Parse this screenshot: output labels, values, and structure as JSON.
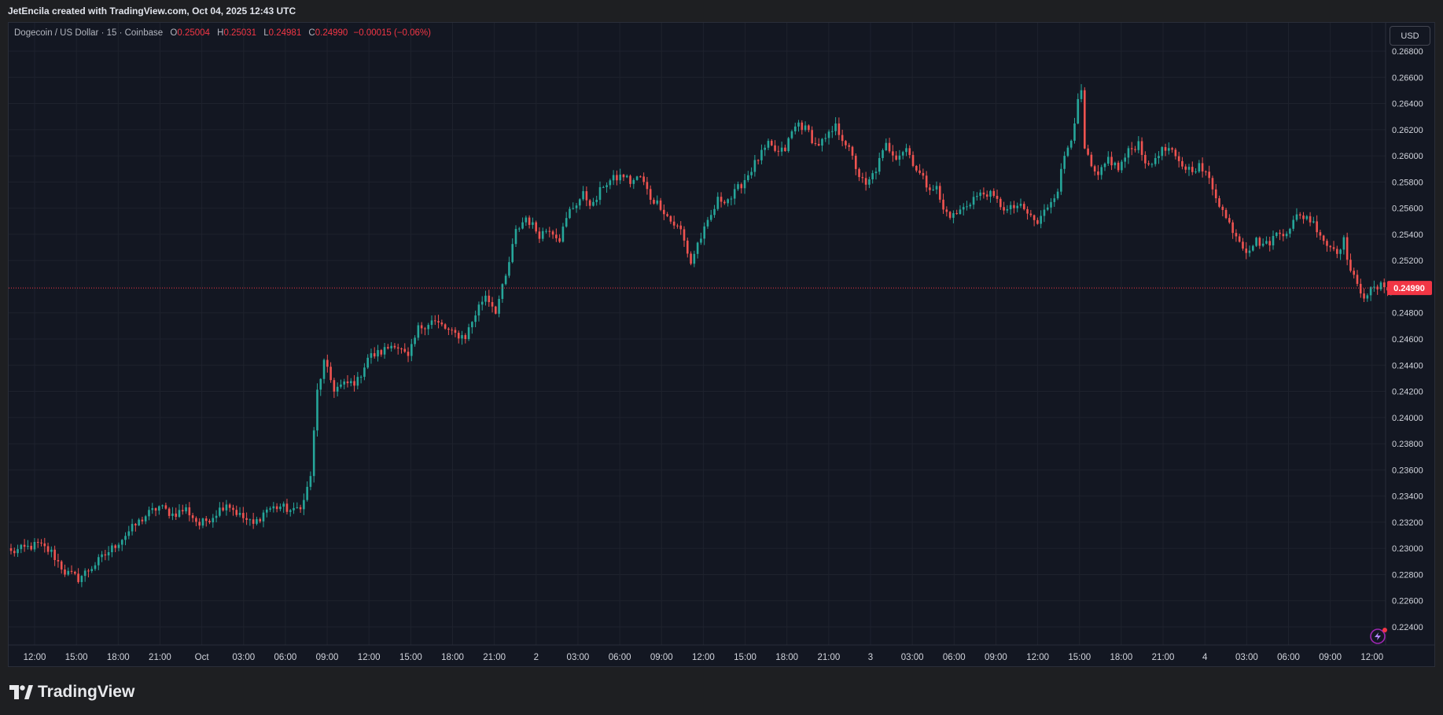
{
  "header": {
    "attribution": "JetEncila created with TradingView.com, Oct 04, 2025 12:43 UTC"
  },
  "legend": {
    "symbol": "Dogecoin / US Dollar · 15 · Coinbase",
    "o_label": "O",
    "o_value": "0.25004",
    "h_label": "H",
    "h_value": "0.25031",
    "l_label": "L",
    "l_value": "0.24981",
    "c_label": "C",
    "c_value": "0.24990",
    "change": "−0.00015 (−0.06%)"
  },
  "currency_button": "USD",
  "brand": {
    "name": "TradingView"
  },
  "colors": {
    "background": "#131722",
    "grid": "#1e222d",
    "up": "#26a69a",
    "down": "#ef5350",
    "axis_text": "#d1d4dc",
    "last_price": "#f23645"
  },
  "chart_data": {
    "type": "candlestick",
    "symbol": "DOGE/USD",
    "interval": "15",
    "y_ticks": [
      "0.26800",
      "0.26600",
      "0.26400",
      "0.26200",
      "0.26000",
      "0.25800",
      "0.25600",
      "0.25400",
      "0.25200",
      "0.24800",
      "0.24600",
      "0.24400",
      "0.24200",
      "0.24000",
      "0.23800",
      "0.23600",
      "0.23400",
      "0.23200",
      "0.23000",
      "0.22800",
      "0.22600",
      "0.22400"
    ],
    "ylim": [
      0.223,
      0.269
    ],
    "x_ticks": [
      "12:00",
      "15:00",
      "18:00",
      "21:00",
      "Oct",
      "03:00",
      "06:00",
      "09:00",
      "12:00",
      "15:00",
      "18:00",
      "21:00",
      "2",
      "03:00",
      "06:00",
      "09:00",
      "12:00",
      "15:00",
      "18:00",
      "21:00",
      "3",
      "03:00",
      "06:00",
      "09:00",
      "12:00",
      "15:00",
      "18:00",
      "21:00",
      "4",
      "03:00",
      "06:00",
      "09:00",
      "12:00"
    ],
    "last_price": 0.2499,
    "last_price_label": "0.24990",
    "anchors": [
      [
        0,
        0.2297
      ],
      [
        8,
        0.2303
      ],
      [
        12,
        0.2297
      ],
      [
        16,
        0.2282
      ],
      [
        20,
        0.2277
      ],
      [
        25,
        0.2288
      ],
      [
        30,
        0.23
      ],
      [
        35,
        0.2313
      ],
      [
        40,
        0.2325
      ],
      [
        44,
        0.2332
      ],
      [
        48,
        0.2326
      ],
      [
        52,
        0.233
      ],
      [
        56,
        0.2318
      ],
      [
        60,
        0.2325
      ],
      [
        64,
        0.2335
      ],
      [
        68,
        0.2325
      ],
      [
        72,
        0.2318
      ],
      [
        76,
        0.233
      ],
      [
        80,
        0.2332
      ],
      [
        84,
        0.2328
      ],
      [
        87,
        0.2336
      ],
      [
        89,
        0.2356
      ],
      [
        91,
        0.242
      ],
      [
        93,
        0.2442
      ],
      [
        96,
        0.2422
      ],
      [
        99,
        0.2425
      ],
      [
        103,
        0.2428
      ],
      [
        106,
        0.2446
      ],
      [
        110,
        0.245
      ],
      [
        114,
        0.2457
      ],
      [
        118,
        0.2445
      ],
      [
        121,
        0.2468
      ],
      [
        125,
        0.2474
      ],
      [
        128,
        0.247
      ],
      [
        131,
        0.2464
      ],
      [
        135,
        0.2462
      ],
      [
        139,
        0.2485
      ],
      [
        141,
        0.2494
      ],
      [
        144,
        0.2482
      ],
      [
        147,
        0.2507
      ],
      [
        150,
        0.2542
      ],
      [
        153,
        0.2553
      ],
      [
        157,
        0.254
      ],
      [
        160,
        0.2545
      ],
      [
        163,
        0.2537
      ],
      [
        166,
        0.2558
      ],
      [
        170,
        0.257
      ],
      [
        173,
        0.2562
      ],
      [
        176,
        0.2578
      ],
      [
        179,
        0.2582
      ],
      [
        182,
        0.2585
      ],
      [
        184,
        0.258
      ],
      [
        187,
        0.2584
      ],
      [
        190,
        0.2568
      ],
      [
        193,
        0.2562
      ],
      [
        196,
        0.255
      ],
      [
        199,
        0.2543
      ],
      [
        202,
        0.2518
      ],
      [
        204,
        0.2533
      ],
      [
        207,
        0.2548
      ],
      [
        210,
        0.2566
      ],
      [
        214,
        0.2568
      ],
      [
        218,
        0.2582
      ],
      [
        222,
        0.2598
      ],
      [
        225,
        0.2608
      ],
      [
        228,
        0.2602
      ],
      [
        230,
        0.2605
      ],
      [
        232,
        0.2618
      ],
      [
        234,
        0.2625
      ],
      [
        237,
        0.2618
      ],
      [
        239,
        0.2608
      ],
      [
        242,
        0.2612
      ],
      [
        245,
        0.2622
      ],
      [
        248,
        0.261
      ],
      [
        250,
        0.2598
      ],
      [
        252,
        0.2585
      ],
      [
        254,
        0.2576
      ],
      [
        257,
        0.259
      ],
      [
        260,
        0.2608
      ],
      [
        263,
        0.26
      ],
      [
        266,
        0.2606
      ],
      [
        269,
        0.259
      ],
      [
        272,
        0.2578
      ],
      [
        275,
        0.2575
      ],
      [
        277,
        0.2558
      ],
      [
        280,
        0.2554
      ],
      [
        283,
        0.256
      ],
      [
        286,
        0.2568
      ],
      [
        290,
        0.2572
      ],
      [
        293,
        0.2565
      ],
      [
        296,
        0.2558
      ],
      [
        299,
        0.2562
      ],
      [
        302,
        0.2556
      ],
      [
        305,
        0.2548
      ],
      [
        308,
        0.2562
      ],
      [
        311,
        0.2575
      ],
      [
        313,
        0.26
      ],
      [
        315,
        0.2615
      ],
      [
        317,
        0.264
      ],
      [
        318,
        0.2648
      ],
      [
        319,
        0.2605
      ],
      [
        321,
        0.259
      ],
      [
        323,
        0.2583
      ],
      [
        326,
        0.2598
      ],
      [
        329,
        0.259
      ],
      [
        332,
        0.2603
      ],
      [
        335,
        0.261
      ],
      [
        338,
        0.259
      ],
      [
        341,
        0.2603
      ],
      [
        344,
        0.2605
      ],
      [
        347,
        0.2594
      ],
      [
        350,
        0.259
      ],
      [
        353,
        0.2592
      ],
      [
        356,
        0.2582
      ],
      [
        358,
        0.257
      ],
      [
        361,
        0.2552
      ],
      [
        364,
        0.254
      ],
      [
        367,
        0.2528
      ],
      [
        370,
        0.2535
      ],
      [
        373,
        0.2532
      ],
      [
        376,
        0.254
      ],
      [
        379,
        0.2543
      ],
      [
        382,
        0.2553
      ],
      [
        385,
        0.2554
      ],
      [
        388,
        0.2545
      ],
      [
        391,
        0.2532
      ],
      [
        394,
        0.2528
      ],
      [
        396,
        0.2535
      ],
      [
        398,
        0.2512
      ],
      [
        400,
        0.25
      ],
      [
        402,
        0.2494
      ],
      [
        405,
        0.2498
      ],
      [
        408,
        0.2501
      ],
      [
        410,
        0.2499
      ]
    ]
  }
}
